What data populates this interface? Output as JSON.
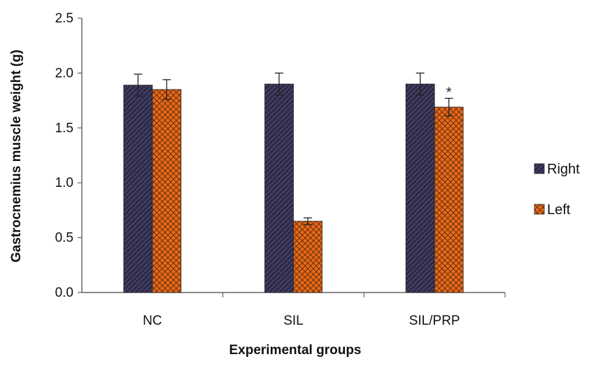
{
  "chart_data": {
    "type": "bar",
    "categories": [
      "NC",
      "SIL",
      "SIL/PRP"
    ],
    "series": [
      {
        "name": "Right",
        "values": [
          1.89,
          1.9,
          1.9
        ],
        "errors": [
          0.1,
          0.1,
          0.1
        ],
        "color": "#2e2a4a",
        "pattern": "diagonal-hatch"
      },
      {
        "name": "Left",
        "values": [
          1.85,
          0.65,
          1.69
        ],
        "errors": [
          0.09,
          0.03,
          0.08
        ],
        "color": "#e86a1a",
        "pattern": "crosshatch"
      }
    ],
    "annotations": [
      {
        "category": "SIL/PRP",
        "series": "Left",
        "text": "*"
      }
    ],
    "xlabel": "Experimental groups",
    "ylabel": "Gastrocnemius muscle  weight (g)",
    "ylim": [
      0,
      2.5
    ],
    "yticks": [
      "0.0",
      "0.5",
      "1.0",
      "1.5",
      "2.0",
      "2.5"
    ],
    "grid": false,
    "legend_position": "right"
  }
}
